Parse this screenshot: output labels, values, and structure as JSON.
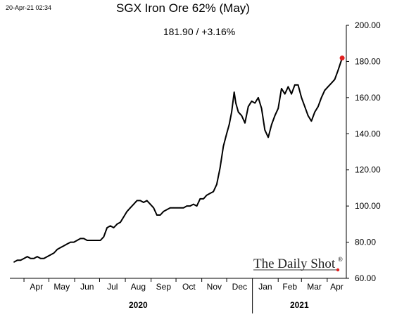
{
  "timestamp": "20-Apr-21 02:34",
  "watermark": "The Daily Shot",
  "watermark_mark": "®",
  "colors": {
    "line": "#000000",
    "end_marker": "#e02020",
    "axis": "#000000"
  },
  "chart_data": {
    "type": "line",
    "title": "SGX Iron Ore 62% (May)",
    "subtitle": "181.90  /  +3.16%",
    "xlabel": "",
    "ylabel": "",
    "ylim": [
      60,
      200
    ],
    "y_ticks": [
      "60.00",
      "80.00",
      "100.00",
      "120.00",
      "140.00",
      "160.00",
      "180.00",
      "200.00"
    ],
    "x_ticks": [
      "Apr",
      "May",
      "Jun",
      "Jul",
      "Aug",
      "Sep",
      "Oct",
      "Nov",
      "Dec",
      "Jan",
      "Feb",
      "Mar",
      "Apr"
    ],
    "year_labels": [
      "2020",
      "2021"
    ],
    "grid": false,
    "legend": "none",
    "series": [
      {
        "x": [
          "2020-03-20",
          "2020-03-24",
          "2020-03-28",
          "2020-04-01",
          "2020-04-05",
          "2020-04-09",
          "2020-04-13",
          "2020-04-17",
          "2020-04-21",
          "2020-04-25",
          "2020-04-29",
          "2020-05-03",
          "2020-05-07",
          "2020-05-11",
          "2020-05-15",
          "2020-05-19",
          "2020-05-23",
          "2020-05-27",
          "2020-05-31",
          "2020-06-04",
          "2020-06-08",
          "2020-06-12",
          "2020-06-16",
          "2020-06-20",
          "2020-06-24",
          "2020-06-28",
          "2020-07-02",
          "2020-07-06",
          "2020-07-10",
          "2020-07-14",
          "2020-07-18",
          "2020-07-22",
          "2020-07-26",
          "2020-07-30",
          "2020-08-03",
          "2020-08-07",
          "2020-08-11",
          "2020-08-15",
          "2020-08-19",
          "2020-08-23",
          "2020-08-27",
          "2020-08-31",
          "2020-09-04",
          "2020-09-08",
          "2020-09-12",
          "2020-09-16",
          "2020-09-20",
          "2020-09-24",
          "2020-09-28",
          "2020-10-02",
          "2020-10-06",
          "2020-10-10",
          "2020-10-14",
          "2020-10-18",
          "2020-10-22",
          "2020-10-26",
          "2020-10-30",
          "2020-11-03",
          "2020-11-07",
          "2020-11-11",
          "2020-11-15",
          "2020-11-19",
          "2020-11-23",
          "2020-11-27",
          "2020-12-01",
          "2020-12-04",
          "2020-12-07",
          "2020-12-10",
          "2020-12-12",
          "2020-12-15",
          "2020-12-19",
          "2020-12-23",
          "2020-12-27",
          "2020-12-31",
          "2021-01-04",
          "2021-01-08",
          "2021-01-12",
          "2021-01-16",
          "2021-01-20",
          "2021-01-24",
          "2021-01-28",
          "2021-02-01",
          "2021-02-05",
          "2021-02-09",
          "2021-02-13",
          "2021-02-17",
          "2021-02-21",
          "2021-02-25",
          "2021-03-01",
          "2021-03-05",
          "2021-03-09",
          "2021-03-13",
          "2021-03-17",
          "2021-03-21",
          "2021-03-25",
          "2021-03-29",
          "2021-04-02",
          "2021-04-06",
          "2021-04-10",
          "2021-04-14",
          "2021-04-19"
        ],
        "values": [
          69,
          70,
          70,
          71,
          72,
          71,
          71,
          72,
          71,
          71,
          72,
          73,
          74,
          76,
          77,
          78,
          79,
          80,
          80,
          81,
          82,
          82,
          81,
          81,
          81,
          81,
          81,
          83,
          88,
          89,
          88,
          90,
          91,
          94,
          97,
          99,
          101,
          103,
          103,
          102,
          103,
          101,
          99,
          95,
          95,
          97,
          98,
          99,
          99,
          99,
          99,
          99,
          100,
          100,
          101,
          100,
          104,
          104,
          106,
          107,
          108,
          112,
          121,
          133,
          140,
          145,
          152,
          163,
          157,
          152,
          150,
          146,
          155,
          158,
          157,
          160,
          154,
          142,
          138,
          145,
          150,
          154,
          165,
          162,
          166,
          162,
          167,
          167,
          160,
          155,
          150,
          147,
          152,
          155,
          160,
          164,
          166,
          168,
          170,
          175,
          181.9
        ]
      }
    ]
  }
}
